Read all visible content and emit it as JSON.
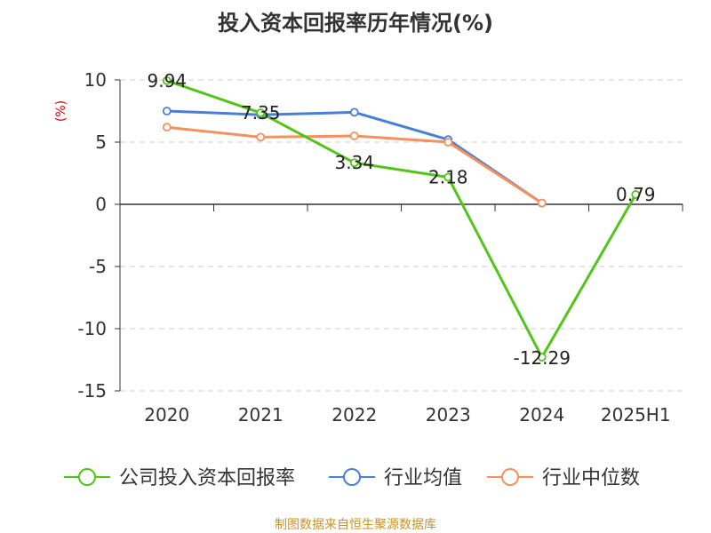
{
  "chart_data": {
    "type": "line",
    "title": "投入资本回报率历年情况(%)",
    "ylabel": "(%)",
    "xlabel": "",
    "categories": [
      "2020",
      "2021",
      "2022",
      "2023",
      "2024",
      "2025H1"
    ],
    "ylim": [
      -15,
      10
    ],
    "yticks": [
      10,
      5,
      0,
      -5,
      -10,
      -15
    ],
    "grid": true,
    "legend_position": "bottom",
    "series": [
      {
        "name": "公司投入资本回报率",
        "color": "#52c41a",
        "values": [
          9.94,
          7.35,
          3.34,
          2.18,
          -12.29,
          0.79
        ],
        "labels": [
          "9.94",
          "7.35",
          "3.34",
          "2.18",
          "-12.29",
          "0.79"
        ]
      },
      {
        "name": "行业均值",
        "color": "#4a7fd8",
        "values": [
          7.5,
          7.2,
          7.4,
          5.2,
          0.1,
          null
        ]
      },
      {
        "name": "行业中位数",
        "color": "#f4915e",
        "values": [
          6.2,
          5.4,
          5.5,
          5.0,
          0.1,
          null
        ]
      }
    ],
    "ylabel_color": "#d00000",
    "source": "制图数据来自恒生聚源数据库",
    "source_color": "#c8922a"
  }
}
